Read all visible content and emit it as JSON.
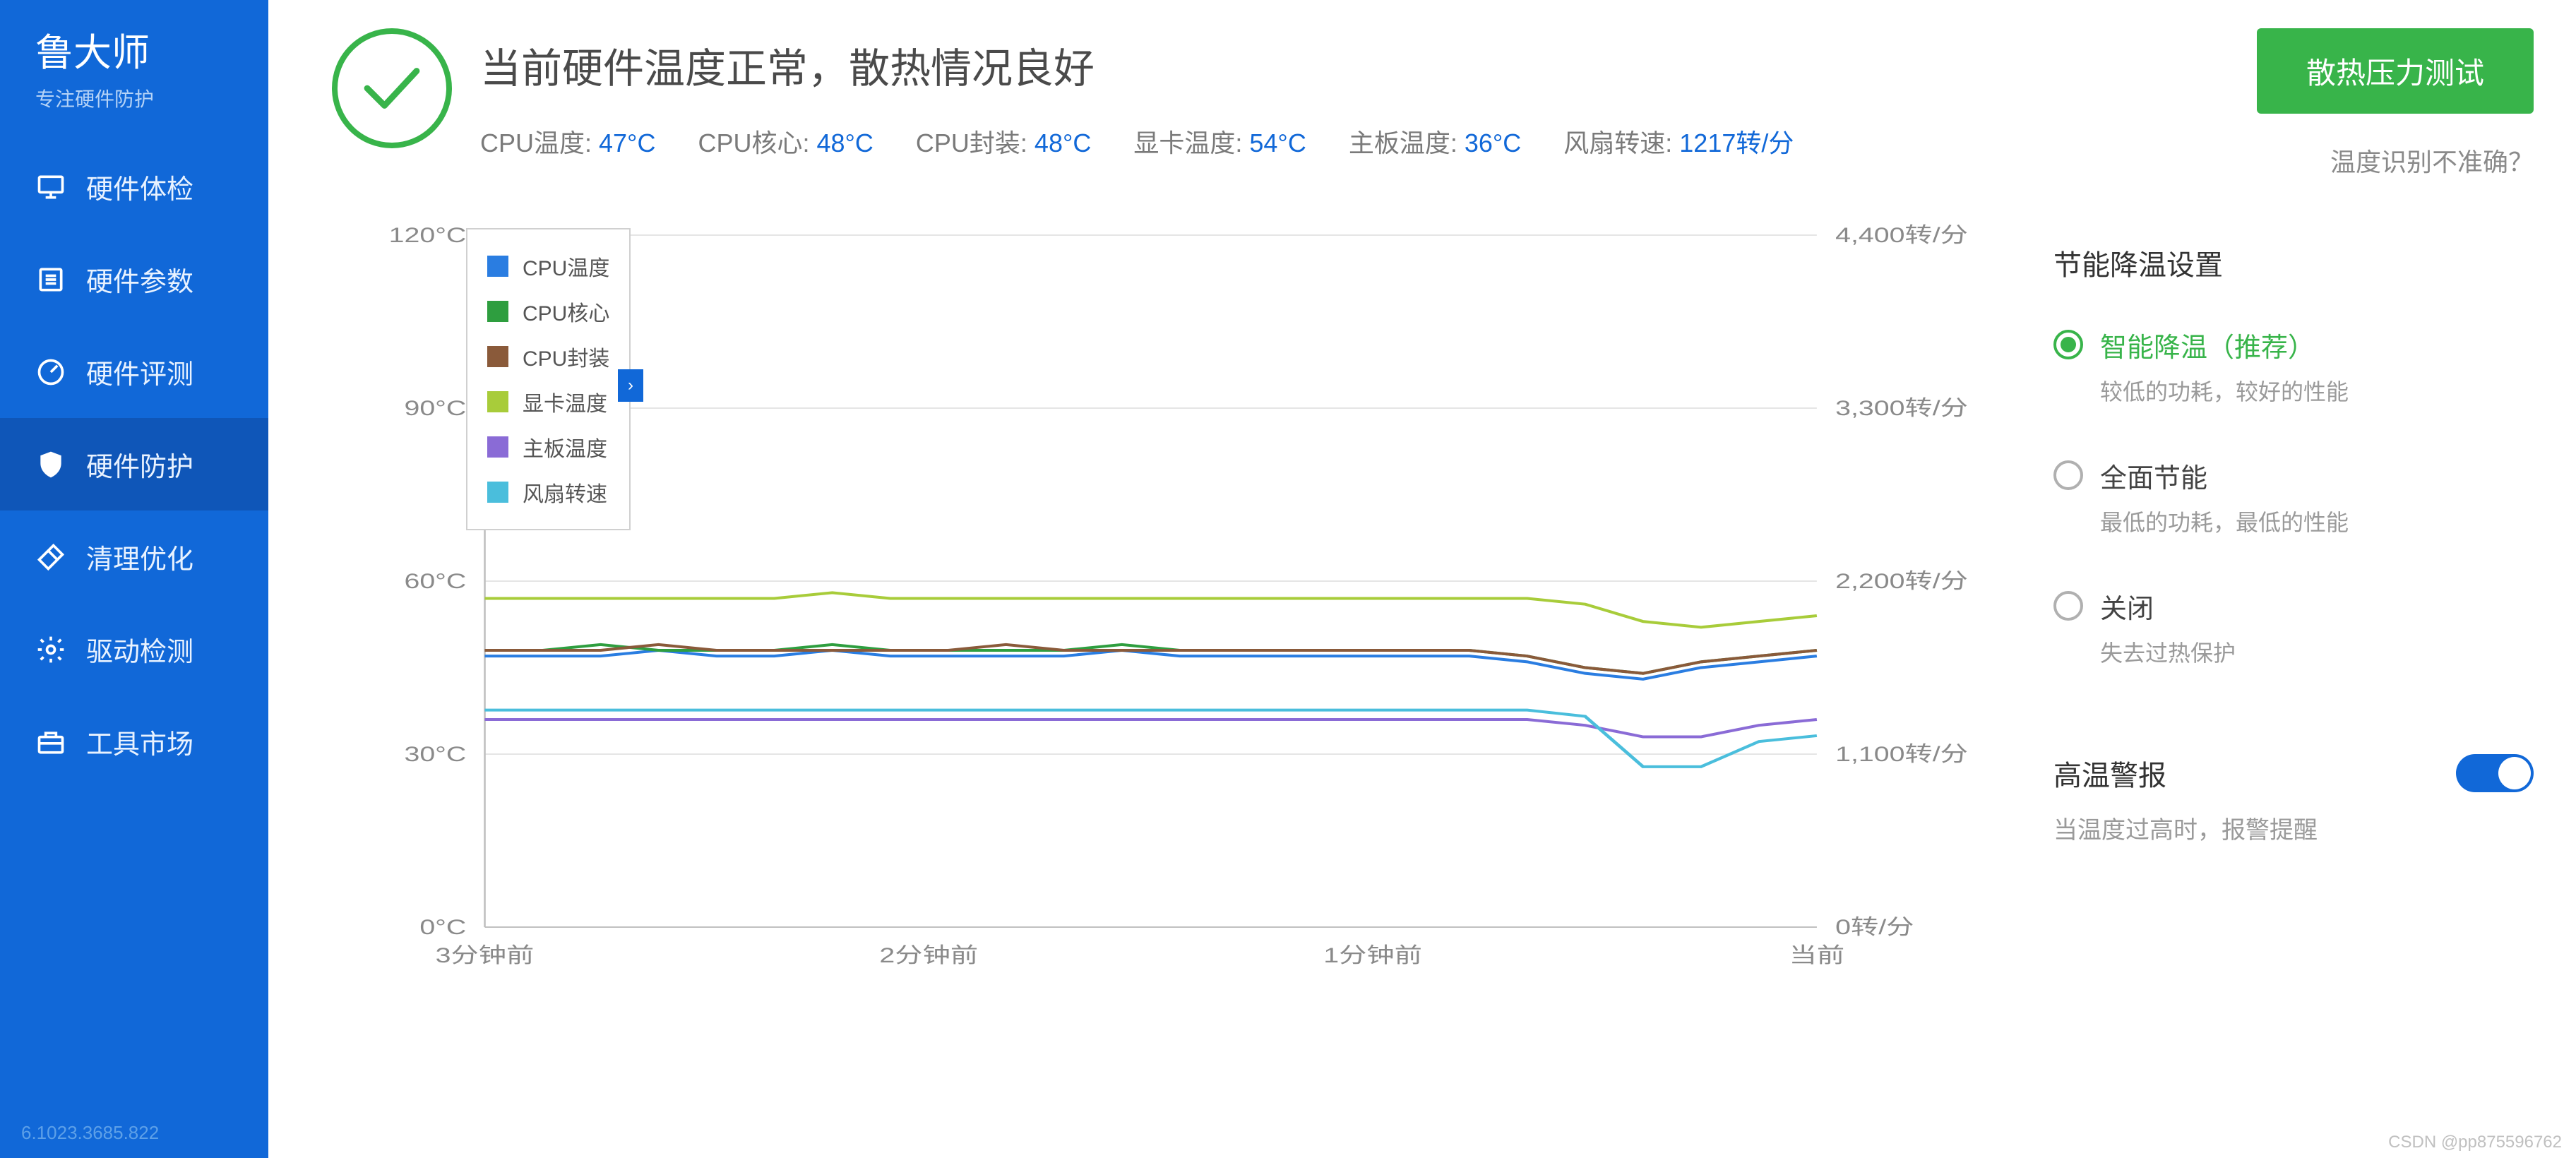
{
  "brand": {
    "title": "鲁大师",
    "subtitle": "专注硬件防护"
  },
  "sidebar": {
    "items": [
      {
        "label": "硬件体检",
        "icon": "monitor"
      },
      {
        "label": "硬件参数",
        "icon": "list"
      },
      {
        "label": "硬件评测",
        "icon": "gauge"
      },
      {
        "label": "硬件防护",
        "icon": "shield",
        "active": true
      },
      {
        "label": "清理优化",
        "icon": "broom"
      },
      {
        "label": "驱动检测",
        "icon": "gear"
      },
      {
        "label": "工具市场",
        "icon": "toolbox"
      }
    ],
    "version": "6.1023.3685.822"
  },
  "header": {
    "status_title": "当前硬件温度正常，散热情况良好",
    "metrics": [
      {
        "label": "CPU温度:",
        "value": "47°C"
      },
      {
        "label": "CPU核心:",
        "value": "48°C"
      },
      {
        "label": "CPU封装:",
        "value": "48°C"
      },
      {
        "label": "显卡温度:",
        "value": "54°C"
      },
      {
        "label": "主板温度:",
        "value": "36°C"
      },
      {
        "label": "风扇转速:",
        "value": "1217转/分"
      }
    ],
    "stress_btn": "散热压力测试",
    "faq_link": "温度识别不准确？"
  },
  "chart": {
    "type": "line",
    "background_color": "#ffffff",
    "grid_color": "#e5e5e5",
    "line_width": 4,
    "left_axis": {
      "label_suffix": "°C",
      "min": 0,
      "max": 120,
      "step": 30,
      "ticks": [
        "0°C",
        "30°C",
        "60°C",
        "90°C",
        "120°C"
      ]
    },
    "right_axis": {
      "label_suffix": "转/分",
      "min": 0,
      "max": 4400,
      "step": 1100,
      "ticks": [
        "0转/分",
        "1,100转/分",
        "2,200转/分",
        "3,300转/分",
        "4,400转/分"
      ]
    },
    "x_axis": {
      "ticks": [
        "3分钟前",
        "2分钟前",
        "1分钟前",
        "当前"
      ]
    },
    "legend": [
      {
        "label": "CPU温度",
        "color": "#2a7de1"
      },
      {
        "label": "CPU核心",
        "color": "#2e9e3f"
      },
      {
        "label": "CPU封装",
        "color": "#8a5a3a"
      },
      {
        "label": "显卡温度",
        "color": "#a8cc3a"
      },
      {
        "label": "主板温度",
        "color": "#8a6bd6"
      },
      {
        "label": "风扇转速",
        "color": "#4abedc"
      }
    ],
    "series": {
      "cpu_temp": {
        "color": "#2a7de1",
        "axis": "left",
        "values": [
          47,
          47,
          47,
          48,
          47,
          47,
          48,
          47,
          47,
          47,
          47,
          48,
          47,
          47,
          47,
          47,
          47,
          47,
          46,
          44,
          43,
          45,
          46,
          47
        ]
      },
      "cpu_core": {
        "color": "#2e9e3f",
        "axis": "left",
        "values": [
          48,
          48,
          49,
          48,
          48,
          48,
          49,
          48,
          48,
          48,
          48,
          49,
          48,
          48,
          48,
          48,
          48,
          48,
          47,
          45,
          44,
          46,
          47,
          48
        ]
      },
      "cpu_package": {
        "color": "#8a5a3a",
        "axis": "left",
        "values": [
          48,
          48,
          48,
          49,
          48,
          48,
          48,
          48,
          48,
          49,
          48,
          48,
          48,
          48,
          48,
          48,
          48,
          48,
          47,
          45,
          44,
          46,
          47,
          48
        ]
      },
      "gpu_temp": {
        "color": "#a8cc3a",
        "axis": "left",
        "values": [
          57,
          57,
          57,
          57,
          57,
          57,
          58,
          57,
          57,
          57,
          57,
          57,
          57,
          57,
          57,
          57,
          57,
          57,
          57,
          56,
          53,
          52,
          53,
          54
        ]
      },
      "mb_temp": {
        "color": "#8a6bd6",
        "axis": "left",
        "values": [
          36,
          36,
          36,
          36,
          36,
          36,
          36,
          36,
          36,
          36,
          36,
          36,
          36,
          36,
          36,
          36,
          36,
          36,
          36,
          35,
          33,
          33,
          35,
          36
        ]
      },
      "fan_rpm": {
        "color": "#4abedc",
        "axis": "right",
        "values": [
          1380,
          1380,
          1380,
          1380,
          1380,
          1380,
          1380,
          1380,
          1380,
          1380,
          1380,
          1380,
          1380,
          1380,
          1380,
          1380,
          1380,
          1380,
          1380,
          1340,
          1020,
          1020,
          1180,
          1217
        ]
      }
    }
  },
  "settings": {
    "panel_title": "节能降温设置",
    "options": [
      {
        "label": "智能降温（推荐）",
        "desc": "较低的功耗，较好的性能",
        "selected": true
      },
      {
        "label": "全面节能",
        "desc": "最低的功耗，最低的性能",
        "selected": false
      },
      {
        "label": "关闭",
        "desc": "失去过热保护",
        "selected": false
      }
    ],
    "alarm": {
      "title": "高温警报",
      "desc": "当温度过高时，报警提醒",
      "on": true
    }
  },
  "watermark": "CSDN @pp875596762"
}
